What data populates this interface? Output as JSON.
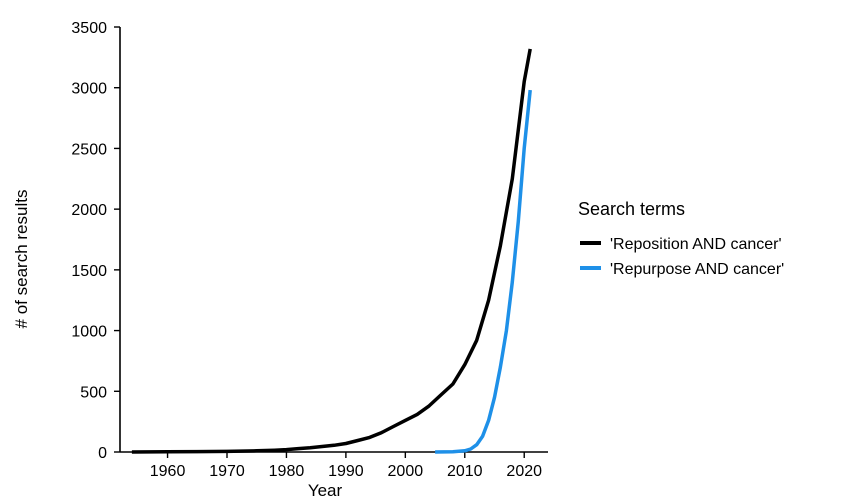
{
  "chart_data": {
    "type": "line",
    "title": "",
    "xlabel": "Year",
    "ylabel": "# of search results",
    "xlim": [
      1952,
      2024
    ],
    "ylim": [
      0,
      3500
    ],
    "xticks": [
      1960,
      1970,
      1980,
      1990,
      2000,
      2010,
      2020
    ],
    "yticks": [
      0,
      500,
      1000,
      1500,
      2000,
      2500,
      3000,
      3500
    ],
    "grid": false,
    "legend": {
      "title": "Search terms",
      "position": "right"
    },
    "series": [
      {
        "name": "'Reposition AND cancer'",
        "color": "#000000",
        "points": [
          [
            1954,
            0
          ],
          [
            1960,
            2
          ],
          [
            1965,
            3
          ],
          [
            1970,
            5
          ],
          [
            1975,
            10
          ],
          [
            1978,
            15
          ],
          [
            1980,
            20
          ],
          [
            1982,
            28
          ],
          [
            1984,
            35
          ],
          [
            1986,
            45
          ],
          [
            1988,
            55
          ],
          [
            1990,
            70
          ],
          [
            1992,
            95
          ],
          [
            1994,
            120
          ],
          [
            1996,
            160
          ],
          [
            1998,
            210
          ],
          [
            2000,
            260
          ],
          [
            2002,
            310
          ],
          [
            2004,
            380
          ],
          [
            2006,
            470
          ],
          [
            2008,
            560
          ],
          [
            2010,
            720
          ],
          [
            2012,
            920
          ],
          [
            2014,
            1250
          ],
          [
            2016,
            1700
          ],
          [
            2018,
            2250
          ],
          [
            2020,
            3050
          ],
          [
            2021,
            3320
          ]
        ]
      },
      {
        "name": "'Repurpose AND cancer'",
        "color": "#1e90e8",
        "points": [
          [
            2005,
            0
          ],
          [
            2008,
            2
          ],
          [
            2010,
            10
          ],
          [
            2011,
            25
          ],
          [
            2012,
            60
          ],
          [
            2013,
            130
          ],
          [
            2014,
            260
          ],
          [
            2015,
            450
          ],
          [
            2016,
            700
          ],
          [
            2017,
            1000
          ],
          [
            2018,
            1400
          ],
          [
            2019,
            1900
          ],
          [
            2020,
            2500
          ],
          [
            2021,
            2980
          ]
        ]
      }
    ]
  }
}
